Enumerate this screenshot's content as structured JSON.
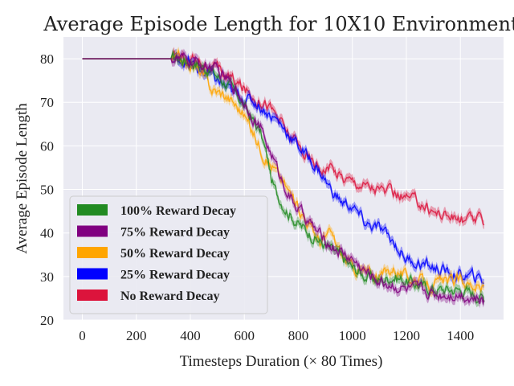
{
  "chart_data": {
    "type": "line",
    "title": "Average Episode Length for 10X10 Environment",
    "xlabel": "Timesteps Duration (× 80 Times)",
    "ylabel": "Average Episode Length",
    "xlim": [
      -70,
      1560
    ],
    "ylim": [
      20,
      85
    ],
    "xticks": [
      0,
      200,
      400,
      600,
      800,
      1000,
      1200,
      1400
    ],
    "yticks": [
      20,
      30,
      40,
      50,
      60,
      70,
      80
    ],
    "grid": true,
    "legend_position": "lower-left",
    "series": [
      {
        "name": "100% Reward Decay",
        "color": "#228B22",
        "x": [
          0,
          300,
          360,
          420,
          480,
          540,
          580,
          620,
          660,
          690,
          700,
          720,
          760,
          800,
          840,
          900,
          950,
          1000,
          1050,
          1100,
          1150,
          1200,
          1250,
          1300,
          1350,
          1400,
          1450,
          1490
        ],
        "y": [
          80,
          80,
          80,
          79,
          77,
          74,
          71,
          67,
          63,
          56,
          52,
          49,
          45,
          42,
          40,
          37,
          35,
          32,
          30,
          29,
          30,
          29,
          28,
          27,
          27,
          27,
          26,
          25
        ]
      },
      {
        "name": "75% Reward Decay",
        "color": "#800080",
        "x": [
          0,
          300,
          360,
          420,
          480,
          540,
          580,
          620,
          660,
          700,
          740,
          780,
          820,
          860,
          900,
          950,
          1000,
          1050,
          1100,
          1150,
          1200,
          1250,
          1300,
          1350,
          1400,
          1450,
          1490
        ],
        "y": [
          80,
          80,
          80,
          79,
          78,
          75,
          72,
          68,
          64,
          58,
          52,
          47,
          44,
          41,
          38,
          36,
          34,
          31,
          29,
          28,
          27,
          27,
          26,
          26,
          26,
          25,
          24
        ]
      },
      {
        "name": "50% Reward Decay",
        "color": "#FFA500",
        "x": [
          0,
          300,
          360,
          420,
          460,
          480,
          520,
          560,
          600,
          640,
          680,
          720,
          760,
          800,
          840,
          880,
          920,
          960,
          1000,
          1050,
          1100,
          1150,
          1200,
          1250,
          1300,
          1350,
          1400,
          1450,
          1490
        ],
        "y": [
          80,
          80,
          80,
          78,
          75,
          73,
          72,
          70,
          67,
          62,
          57,
          54,
          50,
          46,
          42,
          38,
          40,
          35,
          32,
          31,
          30,
          32,
          30,
          29,
          28,
          29,
          29,
          28,
          27
        ]
      },
      {
        "name": "25% Reward Decay",
        "color": "#0000FF",
        "x": [
          0,
          300,
          360,
          400,
          440,
          480,
          520,
          560,
          600,
          640,
          680,
          720,
          760,
          800,
          840,
          880,
          920,
          960,
          1000,
          1050,
          1100,
          1150,
          1200,
          1250,
          1300,
          1350,
          1400,
          1450,
          1490
        ],
        "y": [
          80,
          80,
          80,
          79,
          77,
          76,
          74,
          72,
          71,
          70,
          68,
          66,
          63,
          60,
          57,
          54,
          50,
          47,
          46,
          42,
          41,
          38,
          34,
          33,
          32,
          31,
          30,
          30,
          29
        ]
      },
      {
        "name": "No Reward Decay",
        "color": "#DC143C",
        "x": [
          0,
          300,
          360,
          420,
          480,
          540,
          600,
          640,
          680,
          720,
          760,
          800,
          840,
          880,
          920,
          960,
          1000,
          1050,
          1100,
          1150,
          1200,
          1250,
          1300,
          1350,
          1400,
          1450,
          1490
        ],
        "y": [
          80,
          80,
          80,
          80,
          78,
          76,
          73,
          71,
          70,
          67,
          63,
          60,
          57,
          55,
          55,
          53,
          52,
          51,
          50,
          49,
          48,
          47,
          45,
          44,
          43,
          43,
          43
        ]
      }
    ]
  }
}
